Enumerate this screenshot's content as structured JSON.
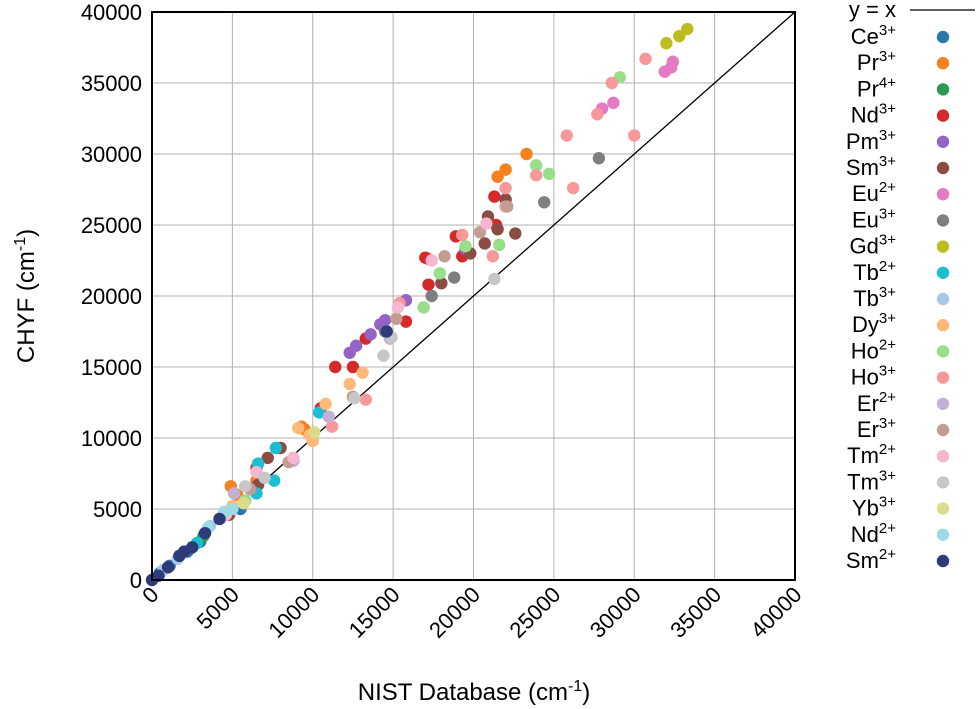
{
  "chart_data": {
    "type": "scatter",
    "xlabel": {
      "main": "NIST Database (cm",
      "sup": "-1",
      "tail": ")"
    },
    "ylabel": {
      "main": "CHYF (cm",
      "sup": "-1",
      "tail": ")"
    },
    "xlim": [
      0,
      40000
    ],
    "ylim": [
      0,
      40000
    ],
    "x_ticks": [
      "0",
      "5000",
      "10000",
      "15000",
      "20000",
      "25000",
      "30000",
      "35000",
      "40000"
    ],
    "y_ticks": [
      "0",
      "5000",
      "10000",
      "15000",
      "20000",
      "25000",
      "30000",
      "35000",
      "40000"
    ],
    "grid": true,
    "legend_position": "right",
    "reference_line": {
      "label": "y = x",
      "color": "#000000"
    },
    "series": [
      {
        "base": "Ce",
        "charge": "3+",
        "color": "#2b78a8",
        "points": [
          [
            500,
            500
          ],
          [
            1100,
            1000
          ],
          [
            2200,
            2000
          ],
          [
            3000,
            2700
          ],
          [
            5500,
            5000
          ]
        ]
      },
      {
        "base": "Pr",
        "charge": "3+",
        "color": "#f7811e",
        "points": [
          [
            4900,
            6600
          ],
          [
            5300,
            6000
          ],
          [
            6500,
            7000
          ],
          [
            9500,
            10600
          ],
          [
            21500,
            28400
          ],
          [
            22000,
            28900
          ],
          [
            23300,
            30000
          ],
          [
            17200,
            22600
          ],
          [
            9300,
            10800
          ]
        ]
      },
      {
        "base": "Pr",
        "charge": "4+",
        "color": "#2b9a55",
        "points": [
          [
            3200,
            3100
          ]
        ]
      },
      {
        "base": "Nd",
        "charge": "3+",
        "color": "#d42a2a",
        "points": [
          [
            11400,
            15000
          ],
          [
            12500,
            15000
          ],
          [
            13300,
            17000
          ],
          [
            15800,
            18200
          ],
          [
            17000,
            22700
          ],
          [
            18900,
            24200
          ],
          [
            19300,
            22800
          ],
          [
            21400,
            25000
          ],
          [
            21300,
            27000
          ],
          [
            10500,
            12100
          ],
          [
            17200,
            20800
          ]
        ]
      },
      {
        "base": "Pm",
        "charge": "3+",
        "color": "#9563c6",
        "points": [
          [
            12300,
            16000
          ],
          [
            12700,
            16500
          ],
          [
            13600,
            17300
          ],
          [
            14200,
            18000
          ],
          [
            14500,
            18300
          ],
          [
            15800,
            19700
          ],
          [
            19500,
            23300
          ]
        ]
      },
      {
        "base": "Sm",
        "charge": "3+",
        "color": "#8b4d43",
        "points": [
          [
            4800,
            4600
          ],
          [
            6500,
            7900
          ],
          [
            7200,
            8600
          ],
          [
            8000,
            9300
          ],
          [
            18000,
            20900
          ],
          [
            19800,
            23000
          ],
          [
            20700,
            23700
          ],
          [
            20900,
            25600
          ],
          [
            21500,
            24700
          ],
          [
            22600,
            24400
          ],
          [
            22000,
            26800
          ],
          [
            6600,
            6700
          ]
        ]
      },
      {
        "base": "Eu",
        "charge": "2+",
        "color": "#e57ac4",
        "points": [
          [
            28700,
            33600
          ],
          [
            31900,
            35800
          ],
          [
            32300,
            36100
          ],
          [
            32400,
            36500
          ],
          [
            28000,
            33200
          ]
        ]
      },
      {
        "base": "Eu",
        "charge": "3+",
        "color": "#7f7f7f",
        "points": [
          [
            17400,
            20000
          ],
          [
            18800,
            21300
          ],
          [
            24400,
            26600
          ],
          [
            27800,
            29700
          ],
          [
            14500,
            17500
          ]
        ]
      },
      {
        "base": "Gd",
        "charge": "3+",
        "color": "#bdbd22",
        "points": [
          [
            32000,
            37800
          ],
          [
            32800,
            38300
          ],
          [
            33300,
            38800
          ]
        ]
      },
      {
        "base": "Tb",
        "charge": "2+",
        "color": "#1ebed2",
        "points": [
          [
            6600,
            8200
          ],
          [
            7700,
            9300
          ],
          [
            10400,
            11800
          ],
          [
            6500,
            6100
          ],
          [
            7600,
            7000
          ],
          [
            2800,
            2600
          ]
        ]
      },
      {
        "base": "Tb",
        "charge": "3+",
        "color": "#a9c7e6",
        "points": [
          [
            700,
            700
          ],
          [
            1600,
            1500
          ],
          [
            3600,
            3800
          ],
          [
            4300,
            4400
          ]
        ]
      },
      {
        "base": "Dy",
        "charge": "3+",
        "color": "#fdb87a",
        "points": [
          [
            9100,
            10700
          ],
          [
            10000,
            9800
          ],
          [
            10800,
            12400
          ],
          [
            12300,
            13800
          ],
          [
            13100,
            14600
          ],
          [
            9800,
            10200
          ],
          [
            5000,
            5200
          ]
        ]
      },
      {
        "base": "Ho",
        "charge": "2+",
        "color": "#98df8a",
        "points": [
          [
            16900,
            19200
          ],
          [
            17900,
            21600
          ],
          [
            19500,
            23500
          ],
          [
            21600,
            23600
          ],
          [
            23900,
            29200
          ],
          [
            24700,
            28600
          ],
          [
            29100,
            35400
          ],
          [
            5800,
            5600
          ]
        ]
      },
      {
        "base": "Ho",
        "charge": "3+",
        "color": "#f7999a",
        "points": [
          [
            11200,
            10800
          ],
          [
            13300,
            12700
          ],
          [
            15400,
            19500
          ],
          [
            19300,
            24300
          ],
          [
            21200,
            22800
          ],
          [
            22000,
            27600
          ],
          [
            22000,
            26300
          ],
          [
            23900,
            28500
          ],
          [
            25800,
            31300
          ],
          [
            26200,
            27600
          ],
          [
            27700,
            32800
          ],
          [
            28600,
            35000
          ],
          [
            30000,
            31300
          ],
          [
            30700,
            36700
          ]
        ]
      },
      {
        "base": "Er",
        "charge": "2+",
        "color": "#c5b0d5",
        "points": [
          [
            5100,
            6100
          ],
          [
            8800,
            8400
          ],
          [
            11000,
            11500
          ],
          [
            14800,
            17000
          ]
        ]
      },
      {
        "base": "Er",
        "charge": "3+",
        "color": "#c39c94",
        "points": [
          [
            6100,
            6400
          ],
          [
            8500,
            8300
          ],
          [
            12500,
            12900
          ],
          [
            15200,
            18400
          ],
          [
            18200,
            22800
          ],
          [
            20400,
            24500
          ],
          [
            22100,
            26300
          ]
        ]
      },
      {
        "base": "Tm",
        "charge": "2+",
        "color": "#f7b6d2",
        "points": [
          [
            4600,
            4600
          ],
          [
            8800,
            8600
          ],
          [
            6500,
            7600
          ],
          [
            17400,
            22500
          ],
          [
            20800,
            25100
          ],
          [
            15300,
            19200
          ]
        ]
      },
      {
        "base": "Tm",
        "charge": "3+",
        "color": "#c7c7c7",
        "points": [
          [
            5800,
            6600
          ],
          [
            7000,
            7200
          ],
          [
            12600,
            12800
          ],
          [
            14400,
            15800
          ],
          [
            14900,
            17100
          ],
          [
            21300,
            21200
          ]
        ]
      },
      {
        "base": "Yb",
        "charge": "3+",
        "color": "#dbdb8d",
        "points": [
          [
            5700,
            5400
          ],
          [
            10100,
            10400
          ]
        ]
      },
      {
        "base": "Nd",
        "charge": "2+",
        "color": "#9edae5",
        "points": [
          [
            3500,
            3700
          ],
          [
            5000,
            5000
          ],
          [
            4500,
            4800
          ]
        ]
      },
      {
        "base": "Sm",
        "charge": "2+",
        "color": "#2d3b7a",
        "points": [
          [
            0,
            0
          ],
          [
            400,
            300
          ],
          [
            1000,
            900
          ],
          [
            1700,
            1700
          ],
          [
            2500,
            2300
          ],
          [
            3300,
            3300
          ],
          [
            4200,
            4300
          ],
          [
            2000,
            2000
          ],
          [
            14600,
            17500
          ]
        ]
      }
    ]
  }
}
